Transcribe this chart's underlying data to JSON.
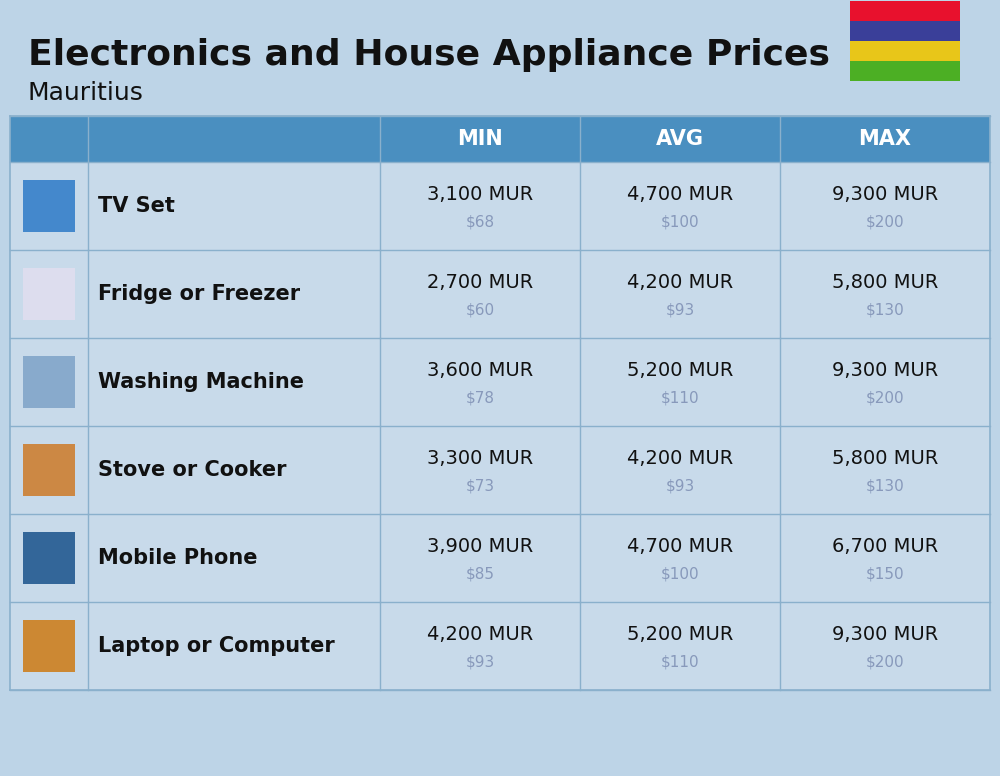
{
  "title": "Electronics and House Appliance Prices",
  "subtitle": "Mauritius",
  "background_color": "#bdd4e7",
  "header_bg_color": "#4a8fc0",
  "header_text_color": "#ffffff",
  "row_bg_color": "#c8daea",
  "divider_color": "#8ab0cc",
  "col_header_color": "#4a8fc0",
  "items": [
    {
      "name": "TV Set",
      "min_mur": "3,100 MUR",
      "min_usd": "$68",
      "avg_mur": "4,700 MUR",
      "avg_usd": "$100",
      "max_mur": "9,300 MUR",
      "max_usd": "$200"
    },
    {
      "name": "Fridge or Freezer",
      "min_mur": "2,700 MUR",
      "min_usd": "$60",
      "avg_mur": "4,200 MUR",
      "avg_usd": "$93",
      "max_mur": "5,800 MUR",
      "max_usd": "$130"
    },
    {
      "name": "Washing Machine",
      "min_mur": "3,600 MUR",
      "min_usd": "$78",
      "avg_mur": "5,200 MUR",
      "avg_usd": "$110",
      "max_mur": "9,300 MUR",
      "max_usd": "$200"
    },
    {
      "name": "Stove or Cooker",
      "min_mur": "3,300 MUR",
      "min_usd": "$73",
      "avg_mur": "4,200 MUR",
      "avg_usd": "$93",
      "max_mur": "5,800 MUR",
      "max_usd": "$130"
    },
    {
      "name": "Mobile Phone",
      "min_mur": "3,900 MUR",
      "min_usd": "$85",
      "avg_mur": "4,700 MUR",
      "avg_usd": "$100",
      "max_mur": "6,700 MUR",
      "max_usd": "$150"
    },
    {
      "name": "Laptop or Computer",
      "min_mur": "4,200 MUR",
      "min_usd": "$93",
      "avg_mur": "5,200 MUR",
      "avg_usd": "$110",
      "max_mur": "9,300 MUR",
      "max_usd": "$200"
    }
  ],
  "flag_colors": [
    "#e8112d",
    "#3a3f99",
    "#e8c619",
    "#4caf24"
  ],
  "col_headers": [
    "MIN",
    "AVG",
    "MAX"
  ],
  "title_fontsize": 26,
  "subtitle_fontsize": 18,
  "header_fontsize": 15,
  "item_name_fontsize": 15,
  "value_fontsize": 14,
  "usd_fontsize": 11,
  "usd_color": "#8899bb",
  "text_color": "#111111"
}
